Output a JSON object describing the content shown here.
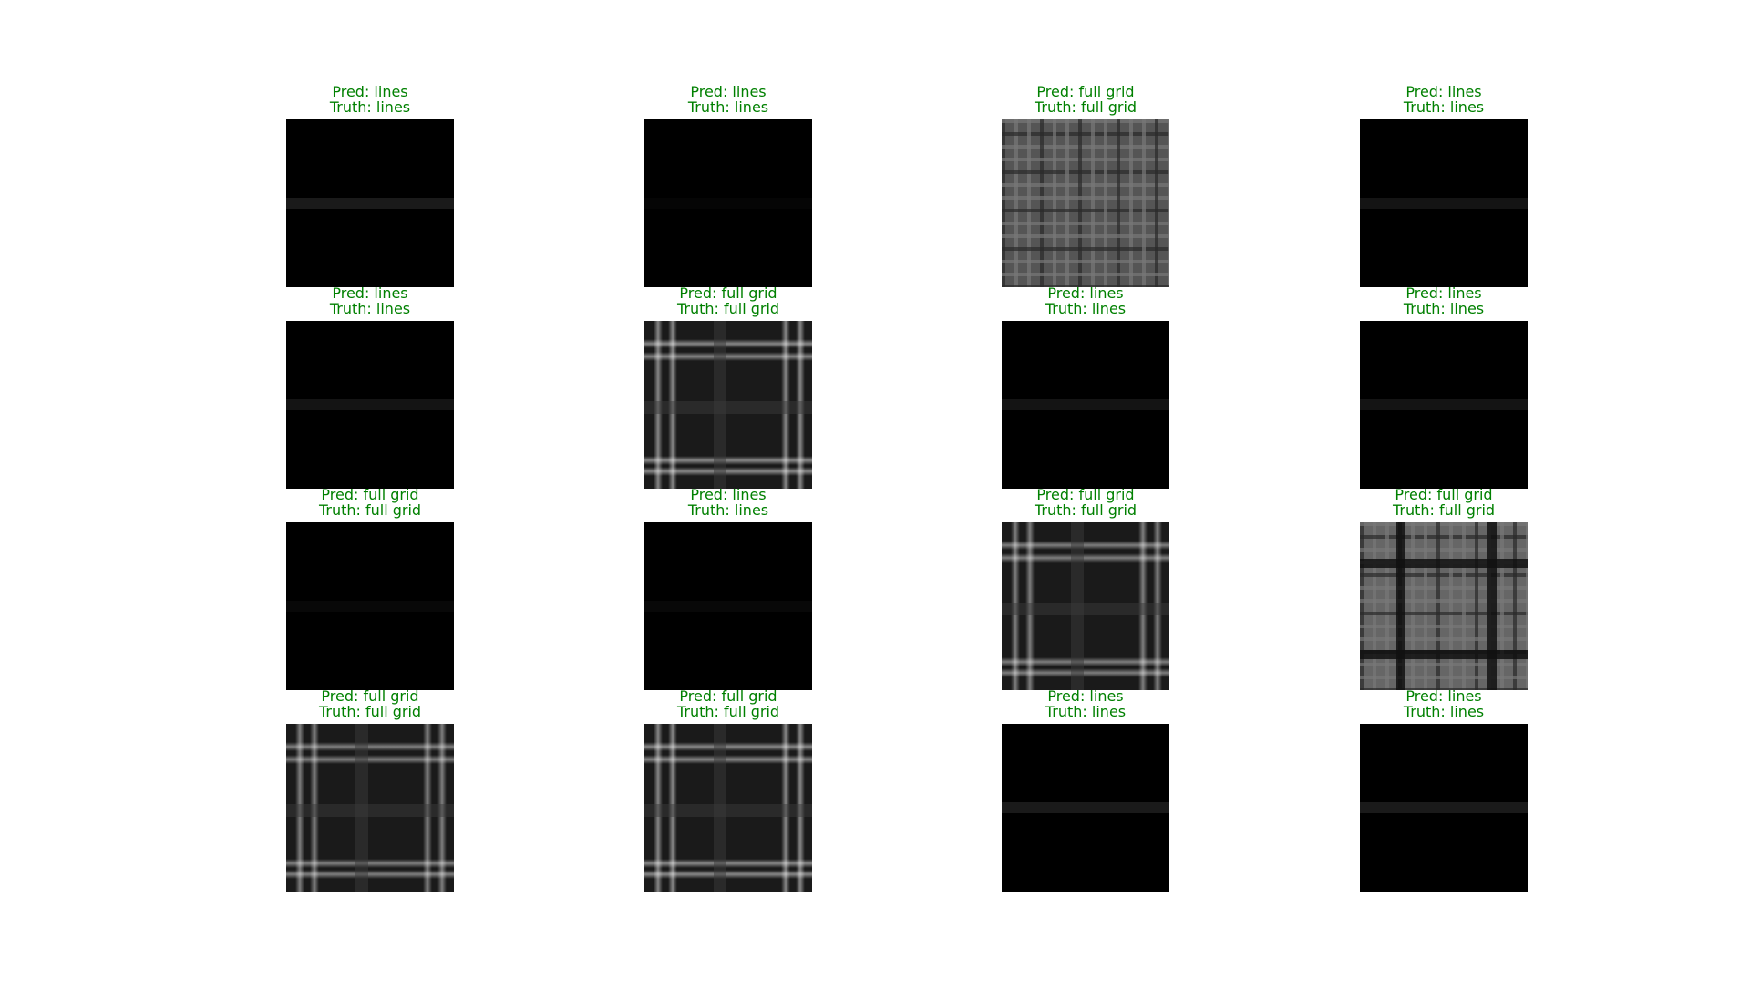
{
  "colors": {
    "title": "#008000",
    "background": "#ffffff",
    "image_base": "#000000"
  },
  "panels": [
    {
      "pred_label": "Pred: lines",
      "truth_label": "Truth: lines",
      "pattern": "lines",
      "intensity": 0.1
    },
    {
      "pred_label": "Pred: lines",
      "truth_label": "Truth: lines",
      "pattern": "dark",
      "intensity": 0.02
    },
    {
      "pred_label": "Pred: full grid",
      "truth_label": "Truth: full grid",
      "pattern": "dense-grid",
      "intensity": 0.45
    },
    {
      "pred_label": "Pred: lines",
      "truth_label": "Truth: lines",
      "pattern": "lines",
      "intensity": 0.08
    },
    {
      "pred_label": "Pred: lines",
      "truth_label": "Truth: lines",
      "pattern": "lines",
      "intensity": 0.08
    },
    {
      "pred_label": "Pred: full grid",
      "truth_label": "Truth: full grid",
      "pattern": "grid",
      "intensity": 0.6
    },
    {
      "pred_label": "Pred: lines",
      "truth_label": "Truth: lines",
      "pattern": "lines",
      "intensity": 0.08
    },
    {
      "pred_label": "Pred: lines",
      "truth_label": "Truth: lines",
      "pattern": "lines",
      "intensity": 0.08
    },
    {
      "pred_label": "Pred: full grid",
      "truth_label": "Truth: full grid",
      "pattern": "dark",
      "intensity": 0.03
    },
    {
      "pred_label": "Pred: lines",
      "truth_label": "Truth: lines",
      "pattern": "dark",
      "intensity": 0.03
    },
    {
      "pred_label": "Pred: full grid",
      "truth_label": "Truth: full grid",
      "pattern": "grid",
      "intensity": 0.55
    },
    {
      "pred_label": "Pred: full grid",
      "truth_label": "Truth: full grid",
      "pattern": "dense-grid-dark",
      "intensity": 0.55
    },
    {
      "pred_label": "Pred: full grid",
      "truth_label": "Truth: full grid",
      "pattern": "grid",
      "intensity": 0.55
    },
    {
      "pred_label": "Pred: full grid",
      "truth_label": "Truth: full grid",
      "pattern": "grid",
      "intensity": 0.6
    },
    {
      "pred_label": "Pred: lines",
      "truth_label": "Truth: lines",
      "pattern": "lines",
      "intensity": 0.1
    },
    {
      "pred_label": "Pred: lines",
      "truth_label": "Truth: lines",
      "pattern": "lines",
      "intensity": 0.1
    }
  ]
}
